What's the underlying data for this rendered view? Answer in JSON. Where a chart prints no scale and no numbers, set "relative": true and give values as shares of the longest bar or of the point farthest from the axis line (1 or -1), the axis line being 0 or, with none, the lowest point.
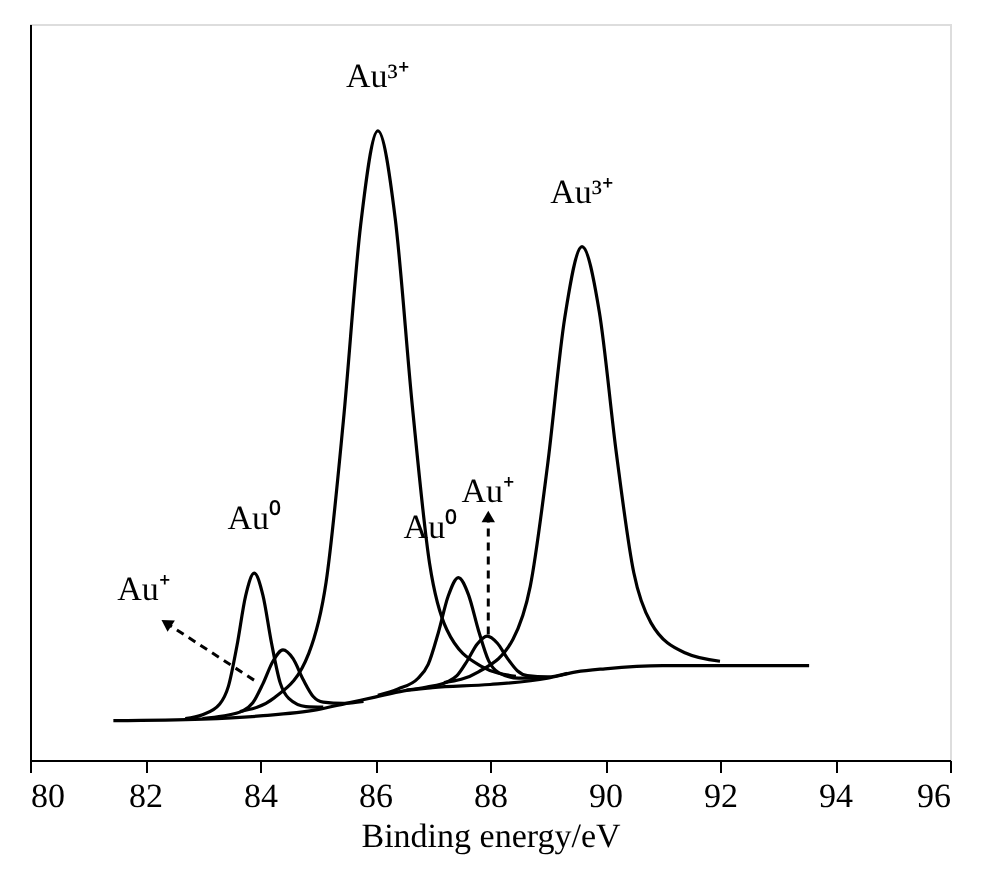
{
  "chart_data": {
    "type": "line",
    "relative": true,
    "xlabel": "Binding energy/eV",
    "xlim": [
      80,
      96
    ],
    "xticks": [
      80,
      82,
      84,
      86,
      88,
      90,
      92,
      94,
      96
    ],
    "tick_labels": "x",
    "grid": false,
    "line_style": "solid",
    "series": [
      {
        "color": "#000000",
        "x": [
          81.45,
          83,
          84,
          85,
          85.5,
          86,
          86.5,
          87,
          88,
          89,
          89.5,
          90,
          91,
          93.55
        ],
        "values": [
          0.0625,
          0.065,
          0.07,
          0.08,
          0.09,
          0.1,
          0.11,
          0.115,
          0.12,
          0.13,
          0.14,
          0.145,
          0.15,
          0.15
        ]
      },
      {
        "color": "#000000",
        "x": [
          82.7,
          83.0,
          83.3,
          83.45,
          83.6,
          83.75,
          83.9,
          84.05,
          84.2,
          84.35,
          84.5,
          84.8,
          85.1
        ],
        "values": [
          0.066,
          0.072,
          0.089,
          0.117,
          0.182,
          0.261,
          0.297,
          0.262,
          0.186,
          0.123,
          0.098,
          0.085,
          0.084
        ]
      },
      {
        "color": "#000000",
        "x": [
          83.0,
          83.35,
          83.7,
          83.875,
          84.05,
          84.225,
          84.4,
          84.575,
          84.75,
          84.925,
          85.1,
          85.45,
          85.8
        ],
        "values": [
          0.066,
          0.07,
          0.078,
          0.091,
          0.121,
          0.157,
          0.175,
          0.161,
          0.128,
          0.101,
          0.092,
          0.09,
          0.093
        ]
      },
      {
        "color": "#000000",
        "x": [
          83.65,
          84.25,
          84.85,
          85.15,
          85.45,
          85.75,
          86.05,
          86.35,
          86.65,
          86.95,
          87.25,
          87.85,
          88.45
        ],
        "values": [
          0.077,
          0.099,
          0.17,
          0.283,
          0.539,
          0.85,
          1.0,
          0.862,
          0.562,
          0.312,
          0.207,
          0.149,
          0.133
        ]
      },
      {
        "color": "#000000",
        "x": [
          86.05,
          86.4,
          86.75,
          86.925,
          87.1,
          87.275,
          87.45,
          87.625,
          87.8,
          87.975,
          88.15,
          88.5,
          88.85
        ],
        "values": [
          0.103,
          0.113,
          0.13,
          0.152,
          0.202,
          0.261,
          0.29,
          0.263,
          0.206,
          0.158,
          0.139,
          0.13,
          0.13
        ]
      },
      {
        "color": "#000000",
        "x": [
          86.55,
          86.9,
          87.25,
          87.425,
          87.6,
          87.775,
          87.95,
          88.125,
          88.3,
          88.475,
          88.65,
          89.0,
          89.35
        ],
        "values": [
          0.111,
          0.116,
          0.124,
          0.134,
          0.157,
          0.184,
          0.197,
          0.186,
          0.162,
          0.142,
          0.134,
          0.132,
          0.138
        ]
      },
      {
        "color": "#000000",
        "x": [
          87.2,
          87.8,
          88.4,
          88.7,
          89.0,
          89.3,
          89.6,
          89.9,
          90.2,
          90.5,
          90.8,
          91.4,
          92.0
        ],
        "values": [
          0.123,
          0.14,
          0.192,
          0.276,
          0.468,
          0.703,
          0.816,
          0.713,
          0.486,
          0.298,
          0.218,
          0.17,
          0.157
        ]
      }
    ],
    "annotations": [
      {
        "text": "Au³⁺",
        "x": 86.05,
        "y": 1.0
      },
      {
        "text": "Au⁰",
        "x": 83.9,
        "y": 0.297
      },
      {
        "text": "Au⁺",
        "x": 82.4,
        "y": 0.216
      },
      {
        "text": "Au⁰",
        "x": 87.45,
        "y": 0.29
      },
      {
        "text": "Au⁺",
        "x": 87.97,
        "y": 0.384
      },
      {
        "text": "Au³⁺",
        "x": 89.6,
        "y": 0.816
      }
    ]
  }
}
